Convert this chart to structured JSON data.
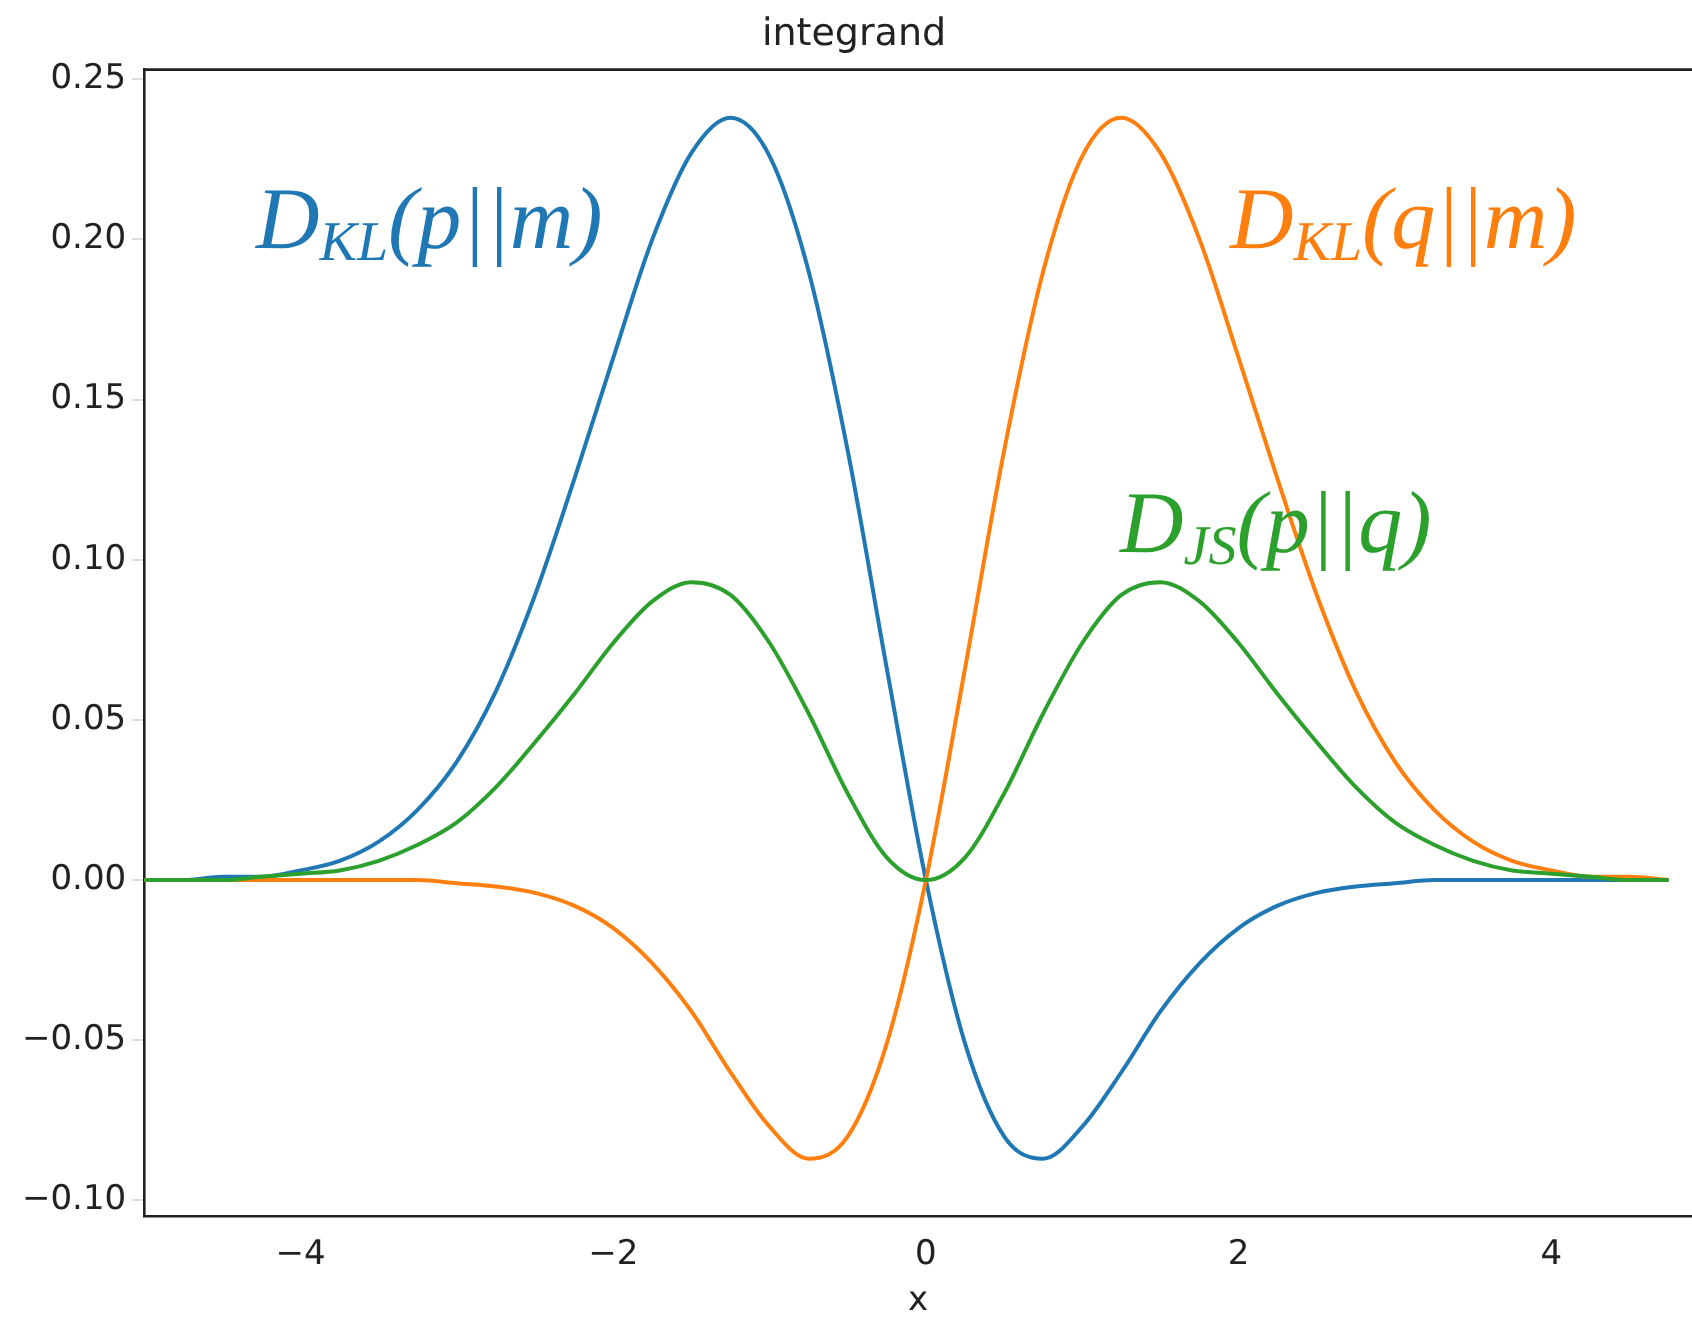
{
  "chart_data": {
    "type": "line",
    "title": "integrand",
    "xlabel": "x",
    "x": [
      -5,
      -4.75,
      -4.5,
      -4.25,
      -4,
      -3.75,
      -3.5,
      -3.25,
      -3,
      -2.75,
      -2.5,
      -2.25,
      -2,
      -1.75,
      -1.5,
      -1.25,
      -1,
      -0.75,
      -0.5,
      -0.25,
      0,
      0.25,
      0.5,
      0.75,
      1,
      1.25,
      1.5,
      1.75,
      2,
      2.25,
      2.5,
      2.75,
      3,
      3.25,
      3.5,
      3.75,
      4,
      4.25,
      4.5,
      4.75
    ],
    "series": [
      {
        "name": "D$_{KL}$(p||m)",
        "color": "#1f77b4",
        "values": [
          0,
          0,
          0.001,
          0.001,
          0.003,
          0.006,
          0.012,
          0.022,
          0.037,
          0.059,
          0.089,
          0.125,
          0.163,
          0.2,
          0.227,
          0.238,
          0.226,
          0.19,
          0.134,
          0.066,
          0,
          -0.051,
          -0.08,
          -0.087,
          -0.077,
          -0.06,
          -0.041,
          -0.026,
          -0.015,
          -0.008,
          -0.004,
          -0.002,
          -0.001,
          0,
          0,
          0,
          0,
          0,
          0,
          0
        ]
      },
      {
        "name": "D$_{KL}$(q||m)",
        "color": "#ff7f0e",
        "values": [
          0,
          0,
          0,
          0,
          0,
          0,
          0,
          0,
          -0.001,
          -0.002,
          -0.004,
          -0.008,
          -0.015,
          -0.026,
          -0.041,
          -0.06,
          -0.077,
          -0.087,
          -0.08,
          -0.051,
          0,
          0.066,
          0.134,
          0.19,
          0.226,
          0.238,
          0.227,
          0.2,
          0.163,
          0.125,
          0.089,
          0.059,
          0.037,
          0.022,
          0.012,
          0.006,
          0.003,
          0.001,
          0.001,
          0
        ]
      },
      {
        "name": "D$_{JS}$(p||q)",
        "color": "#2ca02c",
        "values": [
          0,
          0,
          0,
          0.001,
          0.002,
          0.003,
          0.006,
          0.011,
          0.018,
          0.029,
          0.043,
          0.058,
          0.074,
          0.087,
          0.093,
          0.089,
          0.074,
          0.052,
          0.027,
          0.007,
          0,
          0.007,
          0.027,
          0.052,
          0.074,
          0.089,
          0.093,
          0.087,
          0.074,
          0.058,
          0.043,
          0.029,
          0.018,
          0.011,
          0.006,
          0.003,
          0.002,
          0.001,
          0,
          0
        ]
      }
    ],
    "xlim": [
      -5,
      4.9
    ],
    "xticks": [
      {
        "value": -4,
        "label": "−4"
      },
      {
        "value": -2,
        "label": "−2"
      },
      0,
      2,
      4
    ],
    "ylim": [
      -0.105,
      0.253
    ],
    "yticks": [
      {
        "value": -0.1,
        "label": "−0.10"
      },
      {
        "value": -0.05,
        "label": "−0.05"
      },
      {
        "value": 0,
        "label": "0.00"
      },
      {
        "value": 0.05,
        "label": "0.05"
      },
      {
        "value": 0.1,
        "label": "0.10"
      },
      {
        "value": 0.15,
        "label": "0.15"
      },
      {
        "value": 0.2,
        "label": "0.20"
      },
      {
        "value": 0.25,
        "label": "0.25"
      }
    ],
    "grid": false,
    "legend": false,
    "marker": "none",
    "line_style": "solid"
  }
}
